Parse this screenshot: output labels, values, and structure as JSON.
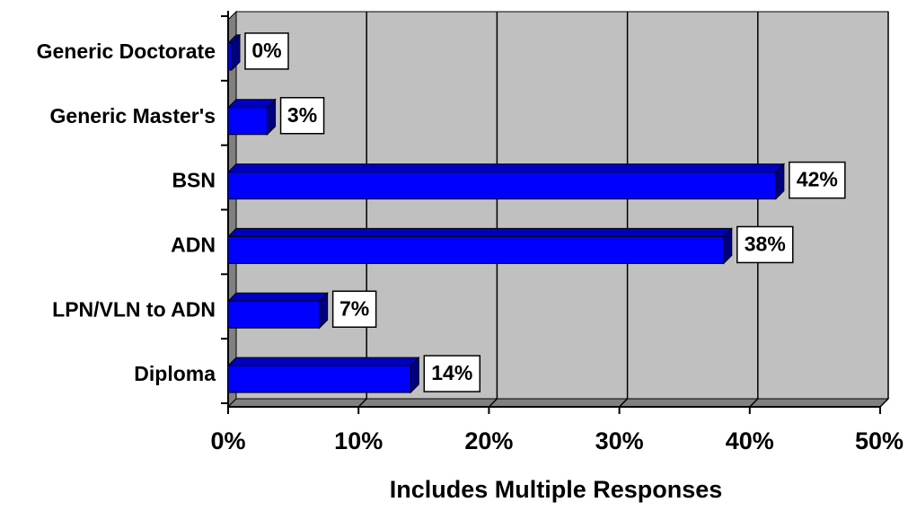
{
  "chart_data": {
    "type": "bar",
    "orientation": "horizontal",
    "style": "3d",
    "categories": [
      "Generic Doctorate",
      "Generic Master's",
      "BSN",
      "ADN",
      "LPN/VLN to ADN",
      "Diploma"
    ],
    "values": [
      0,
      3,
      42,
      38,
      7,
      14
    ],
    "data_labels": [
      "0%",
      "3%",
      "42%",
      "38%",
      "7%",
      "14%"
    ],
    "x_ticks": [
      "0%",
      "10%",
      "20%",
      "30%",
      "40%",
      "50%"
    ],
    "xlim": [
      0,
      50
    ],
    "xlabel": "Includes Multiple Responses",
    "ylabel": "",
    "title": "",
    "grid": true,
    "legend": "none",
    "colors": {
      "bar_front": "#0000ff",
      "bar_top": "#0000c0",
      "bar_side": "#000080",
      "plot_back": "#c0c0c0",
      "plot_floor": "#808080",
      "plot_wall": "#808080"
    }
  }
}
